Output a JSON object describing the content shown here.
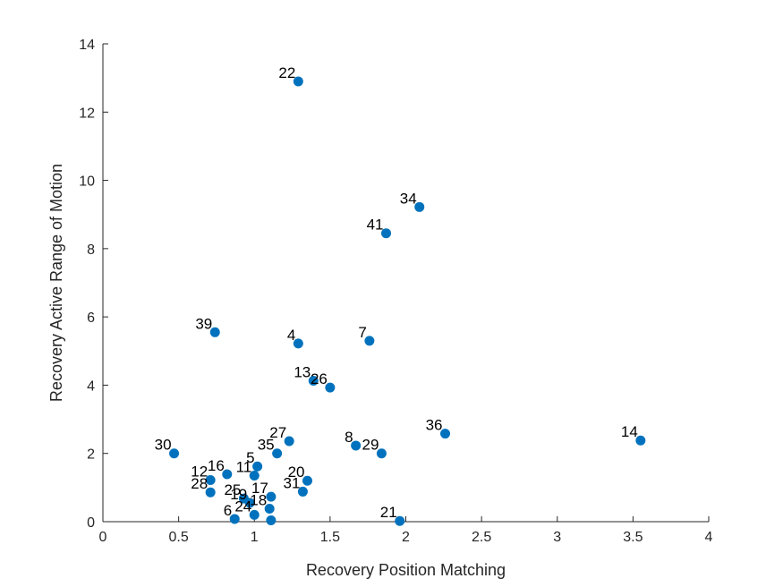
{
  "chart_data": {
    "type": "scatter",
    "title": "",
    "xlabel": "Recovery Position Matching",
    "ylabel": "Recovery Active Range of Motion",
    "xlim": [
      0,
      4
    ],
    "ylim": [
      0,
      14
    ],
    "xticks": [
      "0",
      "0.5",
      "1",
      "1.5",
      "2",
      "2.5",
      "3",
      "3.5",
      "4"
    ],
    "yticks": [
      "0",
      "2",
      "4",
      "6",
      "8",
      "10",
      "12",
      "14"
    ],
    "grid": false,
    "marker_color": "#0072BD",
    "points": [
      {
        "label": "22",
        "x": 1.29,
        "y": 12.9
      },
      {
        "label": "34",
        "x": 2.09,
        "y": 9.22
      },
      {
        "label": "41",
        "x": 1.87,
        "y": 8.45
      },
      {
        "label": "39",
        "x": 0.74,
        "y": 5.55
      },
      {
        "label": "4",
        "x": 1.29,
        "y": 5.22
      },
      {
        "label": "7",
        "x": 1.76,
        "y": 5.3
      },
      {
        "label": "13",
        "x": 1.39,
        "y": 4.13
      },
      {
        "label": "26",
        "x": 1.5,
        "y": 3.93
      },
      {
        "label": "36",
        "x": 2.26,
        "y": 2.58
      },
      {
        "label": "14",
        "x": 3.55,
        "y": 2.38
      },
      {
        "label": "27",
        "x": 1.23,
        "y": 2.36
      },
      {
        "label": "8",
        "x": 1.67,
        "y": 2.23
      },
      {
        "label": "29",
        "x": 1.84,
        "y": 2.0
      },
      {
        "label": "30",
        "x": 0.47,
        "y": 2.0
      },
      {
        "label": "35",
        "x": 1.15,
        "y": 2.0
      },
      {
        "label": "5",
        "x": 1.02,
        "y": 1.62
      },
      {
        "label": "16",
        "x": 0.82,
        "y": 1.39
      },
      {
        "label": "11",
        "x": 1.0,
        "y": 1.35
      },
      {
        "label": "12",
        "x": 0.71,
        "y": 1.22
      },
      {
        "label": "20",
        "x": 1.35,
        "y": 1.2
      },
      {
        "label": "31",
        "x": 1.32,
        "y": 0.88
      },
      {
        "label": "28",
        "x": 0.71,
        "y": 0.86
      },
      {
        "label": "17",
        "x": 1.11,
        "y": 0.73
      },
      {
        "label": "25",
        "x": 0.93,
        "y": 0.68
      },
      {
        "label": "19",
        "x": 0.97,
        "y": 0.55
      },
      {
        "label": "18",
        "x": 1.1,
        "y": 0.38
      },
      {
        "label": "24",
        "x": 1.0,
        "y": 0.2
      },
      {
        "label": "6",
        "x": 0.87,
        "y": 0.08
      },
      {
        "label": "",
        "x": 1.11,
        "y": 0.04
      },
      {
        "label": "21",
        "x": 1.96,
        "y": 0.02
      }
    ]
  }
}
